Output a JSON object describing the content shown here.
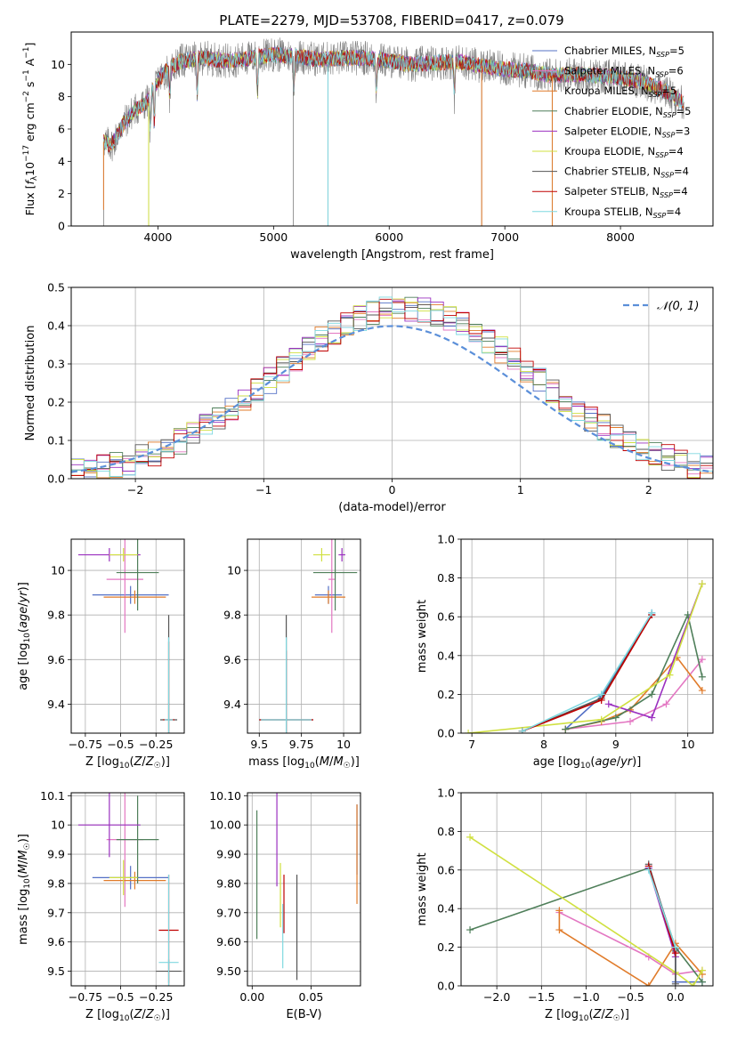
{
  "figure": {
    "title": "PLATE=2279, MJD=53708, FIBERID=0417, z=0.079"
  },
  "legend": {
    "entries": [
      {
        "label": "Chabrier MILES, N",
        "sub": "SSP",
        "tail": "=5",
        "color": "#5470c6"
      },
      {
        "label": "Salpeter MILES, N",
        "sub": "SSP",
        "tail": "=6",
        "color": "#e377c2"
      },
      {
        "label": "Kroupa MILES, N",
        "sub": "SSP",
        "tail": "=5",
        "color": "#e07b2a"
      },
      {
        "label": "Chabrier ELODIE, N",
        "sub": "SSP",
        "tail": "=5",
        "color": "#4f7f5a"
      },
      {
        "label": "Salpeter ELODIE, N",
        "sub": "SSP",
        "tail": "=3",
        "color": "#9b30c0"
      },
      {
        "label": "Kroupa ELODIE, N",
        "sub": "SSP",
        "tail": "=4",
        "color": "#d0e040"
      },
      {
        "label": "Chabrier STELIB, N",
        "sub": "SSP",
        "tail": "=4",
        "color": "#555555"
      },
      {
        "label": "Salpeter STELIB, N",
        "sub": "SSP",
        "tail": "=4",
        "color": "#c00000"
      },
      {
        "label": "Kroupa STELIB, N",
        "sub": "SSP",
        "tail": "=4",
        "color": "#7fd8e0"
      }
    ],
    "normal_label": "𝒩(0, 1)",
    "normal_color": "#5b8fd9"
  },
  "chart_data": [
    {
      "id": "spectrum",
      "type": "line",
      "xlabel": "wavelength [Angstrom, rest frame]",
      "ylabel": "Flux [f",
      "ylabel_full": "Flux [fλ10⁻¹⁷ erg cm⁻² s⁻¹ A⁻¹]",
      "xlim": [
        3250,
        8800
      ],
      "ylim": [
        0,
        12
      ],
      "xticks": [
        4000,
        5000,
        6000,
        7000,
        8000
      ],
      "yticks": [
        0,
        2,
        4,
        6,
        8,
        10
      ],
      "anchors_x": [
        3530,
        3600,
        3700,
        3800,
        3900,
        4000,
        4100,
        4200,
        4400,
        4600,
        4800,
        5000,
        5200,
        5400,
        5600,
        5800,
        6000,
        6200,
        6400,
        6600,
        6800,
        7000,
        7200,
        7400,
        7600,
        7800,
        8000,
        8200,
        8400,
        8550
      ],
      "anchors_y": [
        5.2,
        5.0,
        6.3,
        7.2,
        7.6,
        9.0,
        9.8,
        10.2,
        10.4,
        10.2,
        10.4,
        10.6,
        10.5,
        10.3,
        10.4,
        10.4,
        10.2,
        10.0,
        10.1,
        10.2,
        9.9,
        9.7,
        9.6,
        9.3,
        9.4,
        9.3,
        9.2,
        8.9,
        8.3,
        7.6
      ]
    },
    {
      "id": "residuals",
      "type": "bar",
      "xlabel": "(data-model)/error",
      "ylabel": "Normed distribution",
      "xlim": [
        -2.5,
        2.5
      ],
      "ylim": [
        0,
        0.5
      ],
      "xticks": [
        -2,
        -1,
        0,
        1,
        2
      ],
      "yticks": [
        0.0,
        0.1,
        0.2,
        0.3,
        0.4,
        0.5
      ],
      "bin_width": 0.1
    },
    {
      "id": "age-vs-Z",
      "type": "scatter",
      "xlabel": "Z [log10(Z/Z☉)]",
      "ylabel": "age  [log10(age/yr)]",
      "xlim": [
        -0.85,
        -0.05
      ],
      "ylim": [
        9.27,
        10.14
      ],
      "xticks": [
        -0.75,
        -0.5,
        -0.25
      ],
      "yticks": [
        9.4,
        9.6,
        9.8,
        10.0
      ],
      "points": [
        {
          "x": -0.43,
          "y": 9.89,
          "xerr": 0.27,
          "yerr": 0.04,
          "c": "#5470c6"
        },
        {
          "x": -0.47,
          "y": 9.96,
          "xerr": 0.13,
          "yerr": 0.24,
          "c": "#e377c2"
        },
        {
          "x": -0.4,
          "y": 9.88,
          "xerr": 0.22,
          "yerr": 0.03,
          "c": "#e07b2a"
        },
        {
          "x": -0.38,
          "y": 9.99,
          "xerr": 0.15,
          "yerr": 0.17,
          "c": "#4f7f5a"
        },
        {
          "x": -0.58,
          "y": 10.07,
          "xerr": 0.22,
          "yerr": 0.03,
          "c": "#9b30c0"
        },
        {
          "x": -0.48,
          "y": 10.07,
          "xerr": 0.1,
          "yerr": 0.03,
          "c": "#d0e040"
        },
        {
          "x": -0.16,
          "y": 9.33,
          "xerr": 0.06,
          "yerr": 0.47,
          "c": "#555555"
        },
        {
          "x": -0.16,
          "y": 9.33,
          "xerr": 0.04,
          "yerr": 0.35,
          "c": "#c00000"
        },
        {
          "x": -0.16,
          "y": 9.33,
          "xerr": 0.03,
          "yerr": 0.37,
          "c": "#7fd8e0"
        }
      ]
    },
    {
      "id": "age-vs-mass",
      "type": "scatter",
      "xlabel": "mass [log10(M/M☉)]",
      "ylabel": "",
      "xlim": [
        9.43,
        10.1
      ],
      "ylim": [
        9.27,
        10.14
      ],
      "xticks": [
        9.5,
        9.75,
        10.0
      ],
      "yticks": [
        9.4,
        9.6,
        9.8,
        10.0
      ],
      "points": [
        {
          "x": 9.91,
          "y": 9.89,
          "xerr": 0.08,
          "yerr": 0.04,
          "c": "#5470c6"
        },
        {
          "x": 9.93,
          "y": 9.96,
          "xerr": 0.02,
          "yerr": 0.24,
          "c": "#e377c2"
        },
        {
          "x": 9.91,
          "y": 9.88,
          "xerr": 0.1,
          "yerr": 0.03,
          "c": "#e07b2a"
        },
        {
          "x": 9.95,
          "y": 9.99,
          "xerr": 0.13,
          "yerr": 0.17,
          "c": "#4f7f5a"
        },
        {
          "x": 9.99,
          "y": 10.07,
          "xerr": 0.02,
          "yerr": 0.03,
          "c": "#9b30c0"
        },
        {
          "x": 9.87,
          "y": 10.07,
          "xerr": 0.05,
          "yerr": 0.03,
          "c": "#d0e040"
        },
        {
          "x": 9.66,
          "y": 9.33,
          "xerr": 0.16,
          "yerr": 0.47,
          "c": "#555555"
        },
        {
          "x": 9.66,
          "y": 9.33,
          "xerr": 0.16,
          "yerr": 0.31,
          "c": "#c00000"
        },
        {
          "x": 9.66,
          "y": 9.33,
          "xerr": 0.15,
          "yerr": 0.37,
          "c": "#7fd8e0"
        }
      ]
    },
    {
      "id": "weight-vs-age",
      "type": "line",
      "xlabel": "age  [log10(age/yr)]",
      "ylabel": "mass weight",
      "xlim": [
        6.85,
        10.35
      ],
      "ylim": [
        0,
        1
      ],
      "xticks": [
        7,
        8,
        9,
        10
      ],
      "yticks": [
        0.0,
        0.2,
        0.4,
        0.6,
        0.8,
        1.0
      ],
      "series": [
        {
          "c": "#5470c6",
          "x": [
            8.3,
            8.8,
            9.5
          ],
          "y": [
            0.02,
            0.19,
            0.62
          ]
        },
        {
          "c": "#e377c2",
          "x": [
            8.3,
            9.2,
            9.7,
            10.2
          ],
          "y": [
            0.02,
            0.06,
            0.15,
            0.38
          ]
        },
        {
          "c": "#e07b2a",
          "x": [
            8.3,
            8.8,
            9.2,
            9.85,
            10.2
          ],
          "y": [
            0.02,
            0.06,
            0.12,
            0.39,
            0.22
          ]
        },
        {
          "c": "#4f7f5a",
          "x": [
            8.3,
            9.0,
            9.5,
            10.0,
            10.2
          ],
          "y": [
            0.02,
            0.08,
            0.2,
            0.61,
            0.29
          ]
        },
        {
          "c": "#9b30c0",
          "x": [
            8.9,
            9.5,
            10.2
          ],
          "y": [
            0.15,
            0.08,
            0.77
          ]
        },
        {
          "c": "#d0e040",
          "x": [
            6.95,
            8.8,
            9.75,
            10.2
          ],
          "y": [
            0.0,
            0.07,
            0.3,
            0.77
          ]
        },
        {
          "c": "#555555",
          "x": [
            7.7,
            8.8,
            9.5
          ],
          "y": [
            0.01,
            0.18,
            0.61
          ]
        },
        {
          "c": "#c00000",
          "x": [
            7.7,
            8.8,
            9.5
          ],
          "y": [
            0.01,
            0.17,
            0.61
          ]
        },
        {
          "c": "#7fd8e0",
          "x": [
            7.7,
            8.8,
            9.5
          ],
          "y": [
            0.01,
            0.2,
            0.62
          ]
        }
      ]
    },
    {
      "id": "mass-vs-Z",
      "type": "scatter",
      "xlabel": "Z [log10(Z/Z☉)]",
      "ylabel": "mass [log10(M/M☉)]",
      "xlim": [
        -0.85,
        -0.05
      ],
      "ylim": [
        9.45,
        10.11
      ],
      "xticks": [
        -0.75,
        -0.5,
        -0.25
      ],
      "yticks": [
        9.5,
        9.6,
        9.7,
        9.8,
        9.9,
        10.0,
        10.1
      ],
      "points": [
        {
          "x": -0.43,
          "y": 9.82,
          "xerr": 0.27,
          "yerr": 0.04,
          "c": "#5470c6"
        },
        {
          "x": -0.47,
          "y": 9.95,
          "xerr": 0.13,
          "yerr": 0.23,
          "c": "#e377c2"
        },
        {
          "x": -0.4,
          "y": 9.81,
          "xerr": 0.22,
          "yerr": 0.03,
          "c": "#e07b2a"
        },
        {
          "x": -0.38,
          "y": 9.95,
          "xerr": 0.15,
          "yerr": 0.15,
          "c": "#4f7f5a"
        },
        {
          "x": -0.58,
          "y": 10.0,
          "xerr": 0.22,
          "yerr": 0.11,
          "c": "#9b30c0"
        },
        {
          "x": -0.48,
          "y": 9.82,
          "xerr": 0.1,
          "yerr": 0.06,
          "c": "#d0e040"
        },
        {
          "x": -0.16,
          "y": 9.5,
          "xerr": 0.09,
          "yerr": 0.04,
          "c": "#555555"
        },
        {
          "x": -0.16,
          "y": 9.64,
          "xerr": 0.07,
          "yerr": 0.19,
          "c": "#c00000"
        },
        {
          "x": -0.16,
          "y": 9.53,
          "xerr": 0.07,
          "yerr": 0.3,
          "c": "#7fd8e0"
        }
      ]
    },
    {
      "id": "mass-vs-ebv",
      "type": "scatter",
      "xlabel": "E(B-V)",
      "ylabel": "",
      "xlim": [
        -0.004,
        0.092
      ],
      "ylim": [
        9.45,
        10.11
      ],
      "xticks": [
        0.0,
        0.05
      ],
      "yticks": [
        9.5,
        9.6,
        9.7,
        9.8,
        9.9,
        10.0,
        10.1
      ],
      "points": [
        {
          "x": 0.089,
          "y": 9.95,
          "xerr": 0.0,
          "yerr": 0.12,
          "c": "#5470c6"
        },
        {
          "x": 0.089,
          "y": 9.9,
          "xerr": 0.0,
          "yerr": 0.17,
          "c": "#e07b2a"
        },
        {
          "x": 0.004,
          "y": 9.83,
          "xerr": 0.0,
          "yerr": 0.22,
          "c": "#4f7f5a"
        },
        {
          "x": 0.021,
          "y": 9.95,
          "xerr": 0.0,
          "yerr": 0.16,
          "c": "#9b30c0"
        },
        {
          "x": 0.024,
          "y": 9.76,
          "xerr": 0.0,
          "yerr": 0.11,
          "c": "#d0e040"
        },
        {
          "x": 0.038,
          "y": 9.65,
          "xerr": 0.0,
          "yerr": 0.18,
          "c": "#555555"
        },
        {
          "x": 0.027,
          "y": 9.73,
          "xerr": 0.0,
          "yerr": 0.1,
          "c": "#c00000"
        },
        {
          "x": 0.026,
          "y": 9.62,
          "xerr": 0.0,
          "yerr": 0.11,
          "c": "#7fd8e0"
        }
      ]
    },
    {
      "id": "weight-vs-Z",
      "type": "line",
      "xlabel": "Z [log10(Z/Z☉)]",
      "ylabel": "mass weight",
      "xlim": [
        -2.4,
        0.42
      ],
      "ylim": [
        0,
        1
      ],
      "xticks": [
        -2.0,
        -1.5,
        -1.0,
        -0.5,
        0.0
      ],
      "yticks": [
        0.0,
        0.2,
        0.4,
        0.6,
        0.8,
        1.0
      ],
      "series": [
        {
          "c": "#5470c6",
          "x": [
            -0.3,
            0.0,
            0.0,
            0.3
          ],
          "y": [
            0.62,
            0.19,
            0.02,
            0.02
          ]
        },
        {
          "c": "#e377c2",
          "x": [
            -1.3,
            -0.3,
            0.0,
            0.3
          ],
          "y": [
            0.38,
            0.15,
            0.06,
            0.08
          ]
        },
        {
          "c": "#e07b2a",
          "x": [
            -1.3,
            -1.3,
            -0.3,
            0.0,
            0.3
          ],
          "y": [
            0.39,
            0.29,
            0.0,
            0.22,
            0.06
          ]
        },
        {
          "c": "#4f7f5a",
          "x": [
            -2.3,
            -0.3,
            0.0,
            0.3
          ],
          "y": [
            0.29,
            0.61,
            0.2,
            0.02
          ]
        },
        {
          "c": "#9b30c0",
          "x": [
            -0.3,
            0.0
          ],
          "y": [
            0.61,
            0.15
          ]
        },
        {
          "c": "#d0e040",
          "x": [
            -2.3,
            0.0,
            0.2,
            0.3
          ],
          "y": [
            0.77,
            0.07,
            0.0,
            0.08
          ]
        },
        {
          "c": "#555555",
          "x": [
            -0.3,
            0.0,
            0.0
          ],
          "y": [
            0.63,
            0.18,
            0.01
          ]
        },
        {
          "c": "#c00000",
          "x": [
            -0.3,
            0.0
          ],
          "y": [
            0.62,
            0.17
          ]
        },
        {
          "c": "#7fd8e0",
          "x": [
            -0.3,
            0.0
          ],
          "y": [
            0.6,
            0.2
          ]
        }
      ]
    }
  ]
}
